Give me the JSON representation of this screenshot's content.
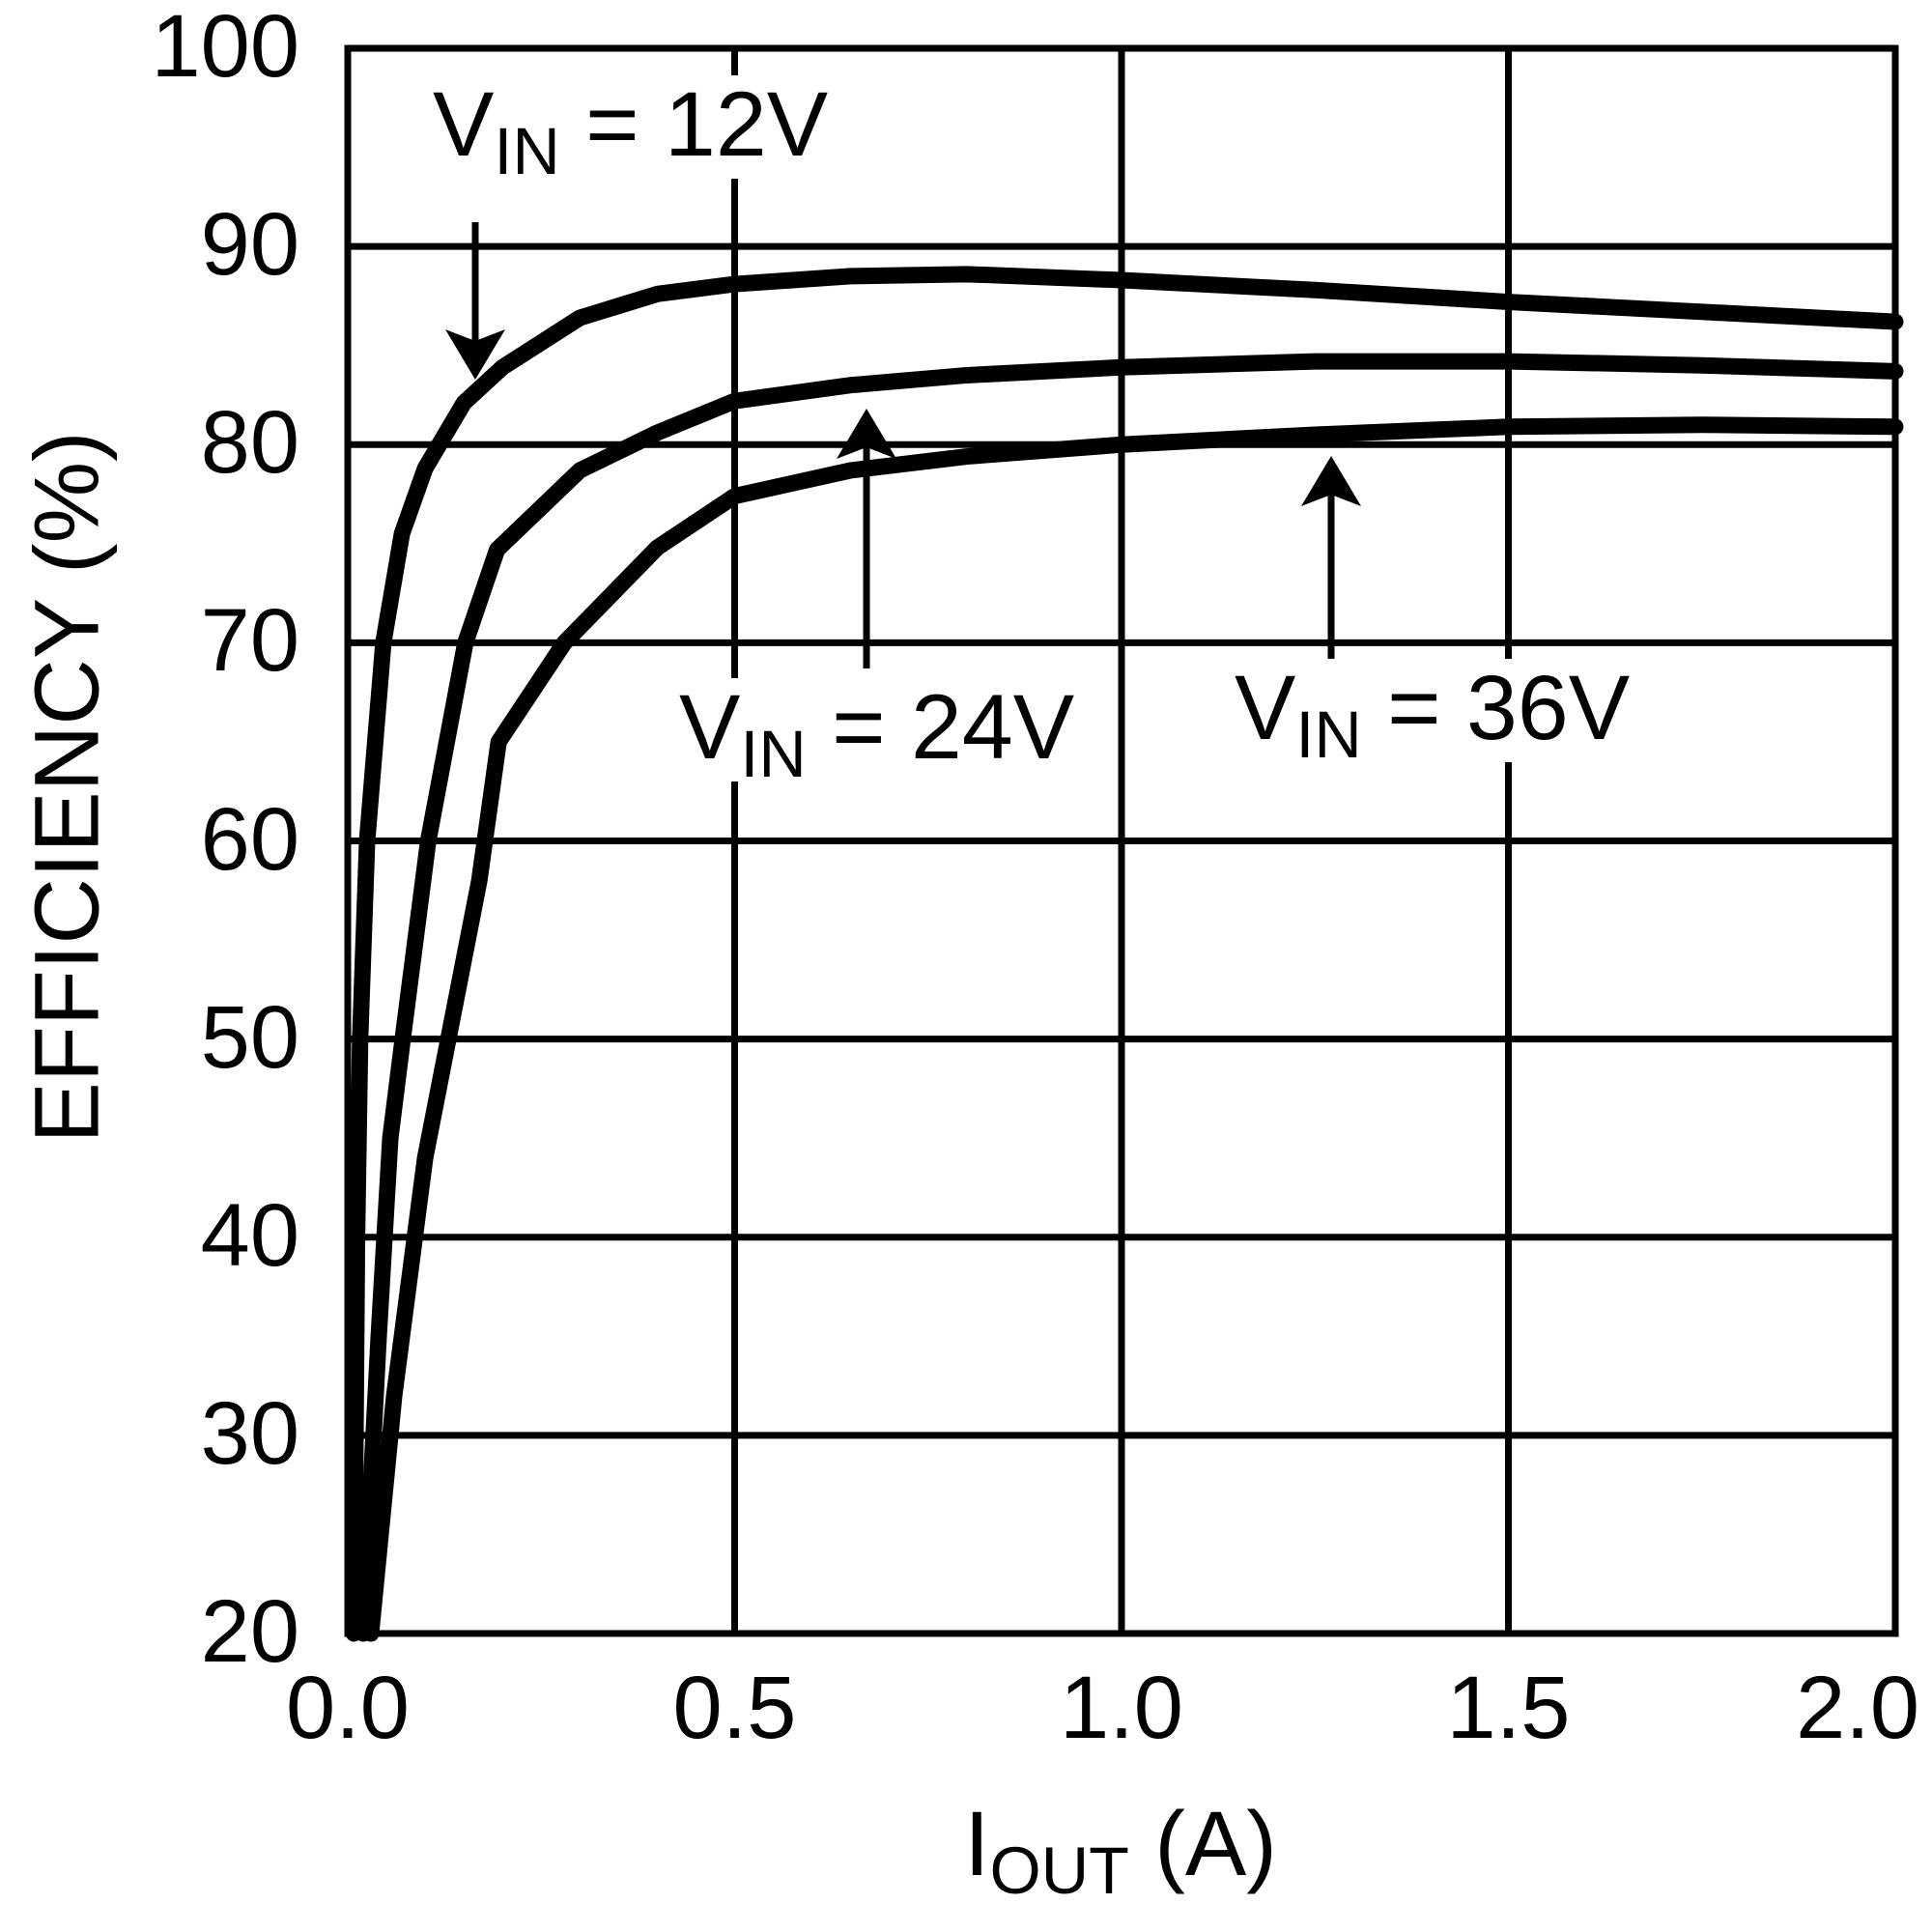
{
  "page": {
    "background": "#ffffff",
    "ink": "#000000"
  },
  "chart_data": {
    "type": "line",
    "title": "",
    "xlabel": {
      "pre": "I",
      "sub": "OUT",
      "post": " (A)"
    },
    "ylabel": "EFFICIENCY (%)",
    "xlim": [
      0.0,
      2.0
    ],
    "ylim": [
      20,
      100
    ],
    "xticks": [
      0.0,
      0.5,
      1.0,
      1.5,
      2.0
    ],
    "xtick_labels": [
      "0.0",
      "0.5",
      "1.0",
      "1.5",
      "2.0"
    ],
    "yticks": [
      20,
      30,
      40,
      50,
      60,
      70,
      80,
      90,
      100
    ],
    "ytick_labels": [
      "20",
      "30",
      "40",
      "50",
      "60",
      "70",
      "80",
      "90",
      "100"
    ],
    "grid": true,
    "line_color": "#000000",
    "legend_position": "inline-annotations",
    "series": [
      {
        "name": "VIN = 12V",
        "label_parts": {
          "pre": "V",
          "sub": "IN",
          "post": " = 12V"
        },
        "arrow_direction": "down",
        "x": [
          0.008,
          0.012,
          0.016,
          0.025,
          0.046,
          0.07,
          0.1,
          0.15,
          0.2,
          0.3,
          0.4,
          0.5,
          0.65,
          0.8,
          1.0,
          1.25,
          1.5,
          1.75,
          2.0
        ],
        "y": [
          20,
          40,
          50,
          60,
          70,
          75.5,
          78.8,
          82.1,
          83.9,
          86.4,
          87.6,
          88.1,
          88.5,
          88.6,
          88.3,
          87.8,
          87.2,
          86.7,
          86.2
        ]
      },
      {
        "name": "VIN = 24V",
        "label_parts": {
          "pre": "V",
          "sub": "IN",
          "post": " = 24V"
        },
        "arrow_direction": "up",
        "x": [
          0.02,
          0.04,
          0.055,
          0.071,
          0.104,
          0.152,
          0.193,
          0.3,
          0.4,
          0.5,
          0.65,
          0.8,
          1.0,
          1.25,
          1.5,
          1.75,
          2.0
        ],
        "y": [
          20,
          35,
          45,
          50,
          60,
          70,
          74.7,
          78.7,
          80.6,
          82.2,
          83.0,
          83.5,
          83.9,
          84.2,
          84.2,
          84.0,
          83.7
        ]
      },
      {
        "name": "VIN = 36V",
        "label_parts": {
          "pre": "V",
          "sub": "IN",
          "post": " = 36V"
        },
        "arrow_direction": "up",
        "x": [
          0.03,
          0.06,
          0.1,
          0.13,
          0.17,
          0.195,
          0.28,
          0.4,
          0.5,
          0.65,
          0.8,
          1.0,
          1.25,
          1.5,
          1.75,
          2.0
        ],
        "y": [
          20,
          32,
          44,
          50,
          58,
          65,
          70,
          74.8,
          77.4,
          78.7,
          79.4,
          80.0,
          80.5,
          80.9,
          81.0,
          80.9
        ]
      }
    ]
  }
}
